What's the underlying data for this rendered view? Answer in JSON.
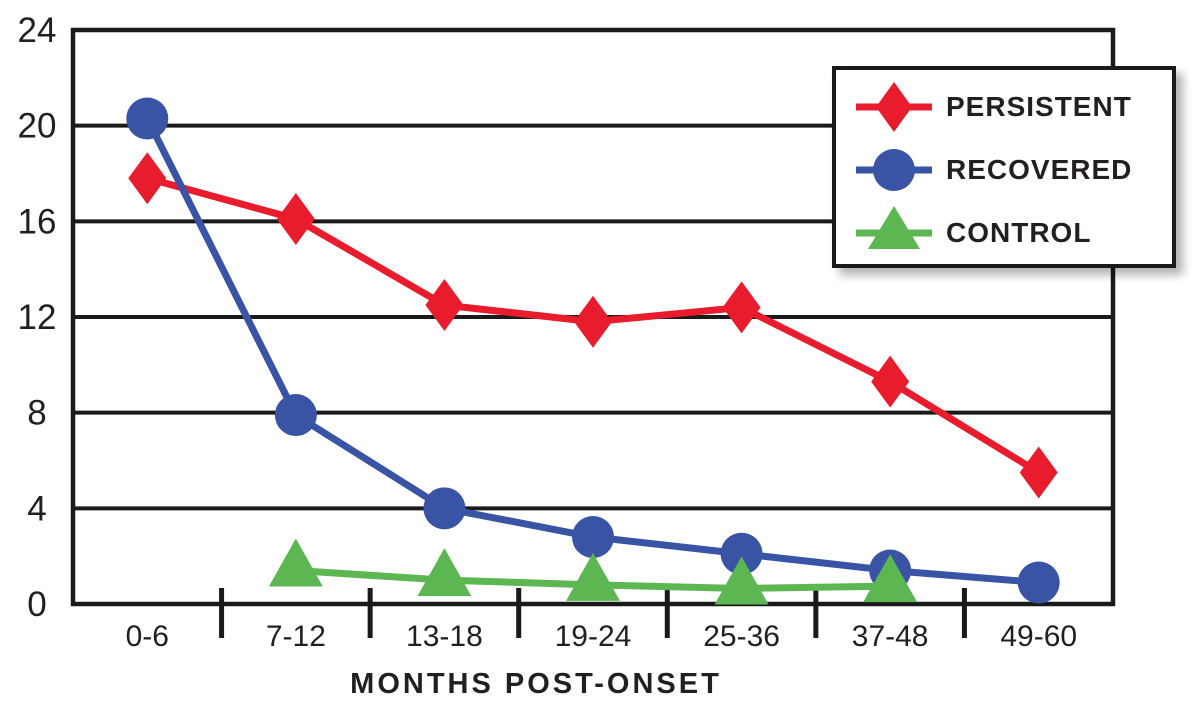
{
  "chart_data": {
    "type": "line",
    "title": "",
    "xlabel": "MONTHS POST-ONSET",
    "ylabel": "",
    "categories": [
      "0-6",
      "7-12",
      "13-18",
      "19-24",
      "25-36",
      "37-48",
      "49-60"
    ],
    "y_ticks": [
      0,
      4,
      8,
      12,
      16,
      20,
      24
    ],
    "ylim": [
      0,
      24
    ],
    "grid": "horizontal",
    "legend_position": "top-right",
    "series": [
      {
        "name": "PERSISTENT",
        "marker": "diamond",
        "color": "#e81c2d",
        "values": [
          17.8,
          16.1,
          12.5,
          11.8,
          12.4,
          9.3,
          5.5
        ]
      },
      {
        "name": "RECOVERED",
        "marker": "circle",
        "color": "#3a54a5",
        "values": [
          20.3,
          7.9,
          4.0,
          2.8,
          2.1,
          1.4,
          0.9
        ]
      },
      {
        "name": "CONTROL",
        "marker": "triangle",
        "color": "#5cb753",
        "values": [
          null,
          1.4,
          1.0,
          0.8,
          0.65,
          0.75,
          null
        ]
      }
    ],
    "axis_color": "#1a1a1a",
    "text_color": "#231f20"
  }
}
